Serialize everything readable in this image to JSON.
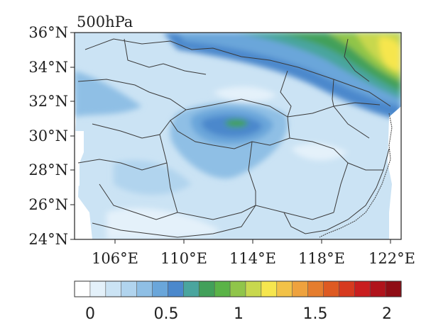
{
  "map": {
    "title": "500hPa",
    "lat_labels": [
      "36°N",
      "34°N",
      "32°N",
      "30°N",
      "28°N",
      "26°N",
      "24°N"
    ],
    "lon_labels": [
      "106°E",
      "110°E",
      "114°E",
      "118°E",
      "122°E"
    ]
  },
  "colorbar": {
    "colors": [
      "#ffffff",
      "#e4f1fa",
      "#cbe3f4",
      "#b1d4ee",
      "#8fbfe5",
      "#6aa6da",
      "#4b88cc",
      "#4aa59e",
      "#42a05a",
      "#5ab347",
      "#90c54a",
      "#c8d84e",
      "#f6e64e",
      "#f2c248",
      "#eea23e",
      "#e57d2e",
      "#de5a22",
      "#d63a1f",
      "#c91e1f",
      "#b0131b",
      "#8f0d15"
    ],
    "labels": [
      "0",
      "0.5",
      "1",
      "1.5",
      "2"
    ]
  }
}
